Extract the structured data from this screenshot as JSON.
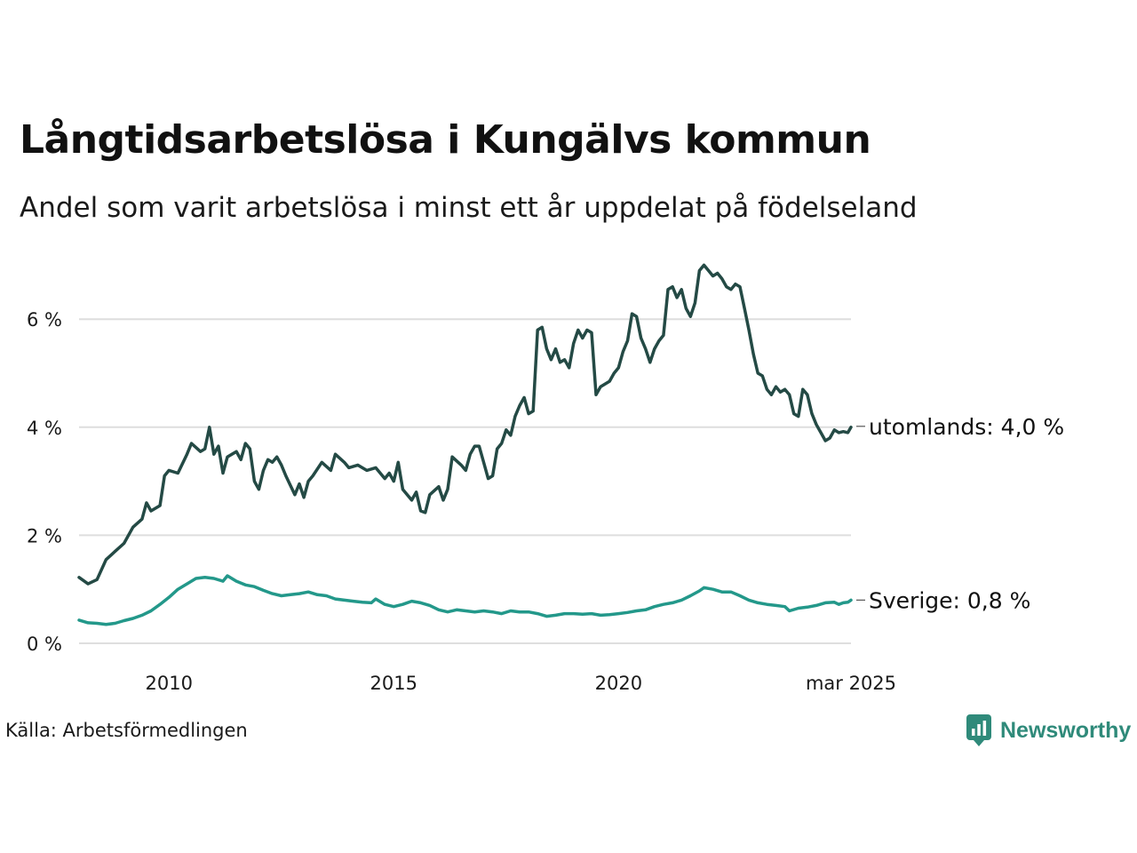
{
  "title": "Långtidsarbetslösa i Kungälvs kommun",
  "subtitle": "Andel som varit arbetslösa i minst ett år uppdelat på födelseland",
  "source": "Källa: Arbetsförmedlingen",
  "brand": {
    "name": "Newsworthy",
    "icon": "newsworthy-logo-icon",
    "color": "#2f8a7a"
  },
  "chart_data": {
    "type": "line",
    "title": "Långtidsarbetslösa i Kungälvs kommun",
    "subtitle": "Andel som varit arbetslösa i minst ett år uppdelat på födelseland",
    "xlabel": "",
    "ylabel": "",
    "xlim": [
      2008.0,
      2025.17
    ],
    "ylim": [
      0,
      7
    ],
    "x_ticks": [
      {
        "value": 2010,
        "label": "2010"
      },
      {
        "value": 2015,
        "label": "2015"
      },
      {
        "value": 2020,
        "label": "2020"
      },
      {
        "value": 2025.17,
        "label": "mar 2025"
      }
    ],
    "y_ticks": [
      {
        "value": 0,
        "label": "0 %"
      },
      {
        "value": 2,
        "label": "2 %"
      },
      {
        "value": 4,
        "label": "4 %"
      },
      {
        "value": 6,
        "label": "6 %"
      }
    ],
    "grid": "horizontal",
    "legend": "end-of-line labels",
    "series": [
      {
        "name": "utomlands",
        "end_label": "utomlands: 4,0 %",
        "color": "#244a45",
        "points": [
          [
            2008.0,
            1.22
          ],
          [
            2008.2,
            1.1
          ],
          [
            2008.4,
            1.18
          ],
          [
            2008.6,
            1.55
          ],
          [
            2008.8,
            1.7
          ],
          [
            2009.0,
            1.85
          ],
          [
            2009.2,
            2.15
          ],
          [
            2009.4,
            2.3
          ],
          [
            2009.5,
            2.6
          ],
          [
            2009.6,
            2.45
          ],
          [
            2009.8,
            2.55
          ],
          [
            2009.9,
            3.1
          ],
          [
            2010.0,
            3.2
          ],
          [
            2010.2,
            3.15
          ],
          [
            2010.4,
            3.5
          ],
          [
            2010.5,
            3.7
          ],
          [
            2010.7,
            3.55
          ],
          [
            2010.8,
            3.6
          ],
          [
            2010.9,
            4.0
          ],
          [
            2011.0,
            3.5
          ],
          [
            2011.1,
            3.65
          ],
          [
            2011.2,
            3.15
          ],
          [
            2011.3,
            3.45
          ],
          [
            2011.5,
            3.55
          ],
          [
            2011.6,
            3.4
          ],
          [
            2011.7,
            3.7
          ],
          [
            2011.8,
            3.6
          ],
          [
            2011.9,
            3.0
          ],
          [
            2012.0,
            2.85
          ],
          [
            2012.1,
            3.2
          ],
          [
            2012.2,
            3.4
          ],
          [
            2012.3,
            3.35
          ],
          [
            2012.4,
            3.45
          ],
          [
            2012.5,
            3.3
          ],
          [
            2012.6,
            3.1
          ],
          [
            2012.8,
            2.75
          ],
          [
            2012.9,
            2.95
          ],
          [
            2013.0,
            2.7
          ],
          [
            2013.1,
            3.0
          ],
          [
            2013.2,
            3.1
          ],
          [
            2013.4,
            3.35
          ],
          [
            2013.6,
            3.2
          ],
          [
            2013.7,
            3.5
          ],
          [
            2013.9,
            3.35
          ],
          [
            2014.0,
            3.25
          ],
          [
            2014.2,
            3.3
          ],
          [
            2014.4,
            3.2
          ],
          [
            2014.6,
            3.25
          ],
          [
            2014.8,
            3.05
          ],
          [
            2014.9,
            3.15
          ],
          [
            2015.0,
            3.0
          ],
          [
            2015.1,
            3.35
          ],
          [
            2015.2,
            2.85
          ],
          [
            2015.4,
            2.65
          ],
          [
            2015.5,
            2.8
          ],
          [
            2015.6,
            2.45
          ],
          [
            2015.7,
            2.42
          ],
          [
            2015.8,
            2.75
          ],
          [
            2016.0,
            2.9
          ],
          [
            2016.1,
            2.65
          ],
          [
            2016.2,
            2.85
          ],
          [
            2016.3,
            3.45
          ],
          [
            2016.5,
            3.3
          ],
          [
            2016.6,
            3.2
          ],
          [
            2016.7,
            3.5
          ],
          [
            2016.8,
            3.65
          ],
          [
            2016.9,
            3.65
          ],
          [
            2017.0,
            3.35
          ],
          [
            2017.1,
            3.05
          ],
          [
            2017.2,
            3.1
          ],
          [
            2017.3,
            3.6
          ],
          [
            2017.4,
            3.7
          ],
          [
            2017.5,
            3.95
          ],
          [
            2017.6,
            3.85
          ],
          [
            2017.7,
            4.2
          ],
          [
            2017.8,
            4.4
          ],
          [
            2017.9,
            4.55
          ],
          [
            2018.0,
            4.25
          ],
          [
            2018.1,
            4.3
          ],
          [
            2018.2,
            5.8
          ],
          [
            2018.3,
            5.85
          ],
          [
            2018.4,
            5.45
          ],
          [
            2018.5,
            5.25
          ],
          [
            2018.6,
            5.45
          ],
          [
            2018.7,
            5.2
          ],
          [
            2018.8,
            5.25
          ],
          [
            2018.9,
            5.1
          ],
          [
            2019.0,
            5.55
          ],
          [
            2019.1,
            5.8
          ],
          [
            2019.2,
            5.65
          ],
          [
            2019.3,
            5.8
          ],
          [
            2019.4,
            5.75
          ],
          [
            2019.5,
            4.6
          ],
          [
            2019.6,
            4.75
          ],
          [
            2019.8,
            4.85
          ],
          [
            2019.9,
            5.0
          ],
          [
            2020.0,
            5.1
          ],
          [
            2020.1,
            5.4
          ],
          [
            2020.2,
            5.6
          ],
          [
            2020.3,
            6.1
          ],
          [
            2020.4,
            6.05
          ],
          [
            2020.5,
            5.65
          ],
          [
            2020.6,
            5.45
          ],
          [
            2020.7,
            5.2
          ],
          [
            2020.8,
            5.45
          ],
          [
            2020.9,
            5.6
          ],
          [
            2021.0,
            5.7
          ],
          [
            2021.1,
            6.55
          ],
          [
            2021.2,
            6.6
          ],
          [
            2021.3,
            6.4
          ],
          [
            2021.4,
            6.55
          ],
          [
            2021.5,
            6.2
          ],
          [
            2021.6,
            6.05
          ],
          [
            2021.7,
            6.3
          ],
          [
            2021.8,
            6.9
          ],
          [
            2021.9,
            7.0
          ],
          [
            2022.0,
            6.9
          ],
          [
            2022.1,
            6.8
          ],
          [
            2022.2,
            6.85
          ],
          [
            2022.3,
            6.75
          ],
          [
            2022.4,
            6.6
          ],
          [
            2022.5,
            6.55
          ],
          [
            2022.6,
            6.65
          ],
          [
            2022.7,
            6.6
          ],
          [
            2022.8,
            6.2
          ],
          [
            2022.9,
            5.8
          ],
          [
            2023.0,
            5.35
          ],
          [
            2023.1,
            5.0
          ],
          [
            2023.2,
            4.95
          ],
          [
            2023.3,
            4.7
          ],
          [
            2023.4,
            4.6
          ],
          [
            2023.5,
            4.75
          ],
          [
            2023.6,
            4.65
          ],
          [
            2023.7,
            4.7
          ],
          [
            2023.8,
            4.6
          ],
          [
            2023.9,
            4.25
          ],
          [
            2024.0,
            4.2
          ],
          [
            2024.1,
            4.7
          ],
          [
            2024.2,
            4.6
          ],
          [
            2024.3,
            4.25
          ],
          [
            2024.4,
            4.05
          ],
          [
            2024.5,
            3.9
          ],
          [
            2024.6,
            3.75
          ],
          [
            2024.7,
            3.8
          ],
          [
            2024.8,
            3.95
          ],
          [
            2024.9,
            3.9
          ],
          [
            2025.0,
            3.92
          ],
          [
            2025.1,
            3.9
          ],
          [
            2025.17,
            4.0
          ]
        ]
      },
      {
        "name": "Sverige",
        "end_label": "Sverige: 0,8 %",
        "color": "#23988a",
        "points": [
          [
            2008.0,
            0.43
          ],
          [
            2008.2,
            0.38
          ],
          [
            2008.4,
            0.37
          ],
          [
            2008.6,
            0.35
          ],
          [
            2008.8,
            0.37
          ],
          [
            2009.0,
            0.42
          ],
          [
            2009.2,
            0.46
          ],
          [
            2009.4,
            0.52
          ],
          [
            2009.6,
            0.6
          ],
          [
            2009.8,
            0.72
          ],
          [
            2010.0,
            0.85
          ],
          [
            2010.2,
            1.0
          ],
          [
            2010.4,
            1.1
          ],
          [
            2010.6,
            1.2
          ],
          [
            2010.8,
            1.22
          ],
          [
            2011.0,
            1.2
          ],
          [
            2011.2,
            1.15
          ],
          [
            2011.3,
            1.25
          ],
          [
            2011.5,
            1.15
          ],
          [
            2011.7,
            1.08
          ],
          [
            2011.9,
            1.05
          ],
          [
            2012.1,
            0.98
          ],
          [
            2012.3,
            0.92
          ],
          [
            2012.5,
            0.88
          ],
          [
            2012.7,
            0.9
          ],
          [
            2012.9,
            0.92
          ],
          [
            2013.1,
            0.95
          ],
          [
            2013.3,
            0.9
          ],
          [
            2013.5,
            0.88
          ],
          [
            2013.7,
            0.82
          ],
          [
            2013.9,
            0.8
          ],
          [
            2014.1,
            0.78
          ],
          [
            2014.3,
            0.76
          ],
          [
            2014.5,
            0.75
          ],
          [
            2014.6,
            0.82
          ],
          [
            2014.8,
            0.72
          ],
          [
            2015.0,
            0.68
          ],
          [
            2015.2,
            0.72
          ],
          [
            2015.4,
            0.78
          ],
          [
            2015.6,
            0.75
          ],
          [
            2015.8,
            0.7
          ],
          [
            2016.0,
            0.62
          ],
          [
            2016.2,
            0.58
          ],
          [
            2016.4,
            0.62
          ],
          [
            2016.6,
            0.6
          ],
          [
            2016.8,
            0.58
          ],
          [
            2017.0,
            0.6
          ],
          [
            2017.2,
            0.58
          ],
          [
            2017.4,
            0.55
          ],
          [
            2017.6,
            0.6
          ],
          [
            2017.8,
            0.58
          ],
          [
            2018.0,
            0.58
          ],
          [
            2018.2,
            0.55
          ],
          [
            2018.4,
            0.5
          ],
          [
            2018.6,
            0.52
          ],
          [
            2018.8,
            0.55
          ],
          [
            2019.0,
            0.55
          ],
          [
            2019.2,
            0.54
          ],
          [
            2019.4,
            0.55
          ],
          [
            2019.6,
            0.52
          ],
          [
            2019.8,
            0.53
          ],
          [
            2020.0,
            0.55
          ],
          [
            2020.2,
            0.57
          ],
          [
            2020.4,
            0.6
          ],
          [
            2020.6,
            0.62
          ],
          [
            2020.8,
            0.68
          ],
          [
            2021.0,
            0.72
          ],
          [
            2021.2,
            0.75
          ],
          [
            2021.4,
            0.8
          ],
          [
            2021.6,
            0.88
          ],
          [
            2021.8,
            0.97
          ],
          [
            2021.9,
            1.03
          ],
          [
            2022.1,
            1.0
          ],
          [
            2022.3,
            0.95
          ],
          [
            2022.5,
            0.95
          ],
          [
            2022.7,
            0.88
          ],
          [
            2022.9,
            0.8
          ],
          [
            2023.1,
            0.75
          ],
          [
            2023.3,
            0.72
          ],
          [
            2023.5,
            0.7
          ],
          [
            2023.7,
            0.68
          ],
          [
            2023.8,
            0.6
          ],
          [
            2024.0,
            0.65
          ],
          [
            2024.2,
            0.67
          ],
          [
            2024.4,
            0.7
          ],
          [
            2024.6,
            0.75
          ],
          [
            2024.8,
            0.76
          ],
          [
            2024.9,
            0.72
          ],
          [
            2025.0,
            0.75
          ],
          [
            2025.1,
            0.76
          ],
          [
            2025.17,
            0.8
          ]
        ]
      }
    ]
  }
}
